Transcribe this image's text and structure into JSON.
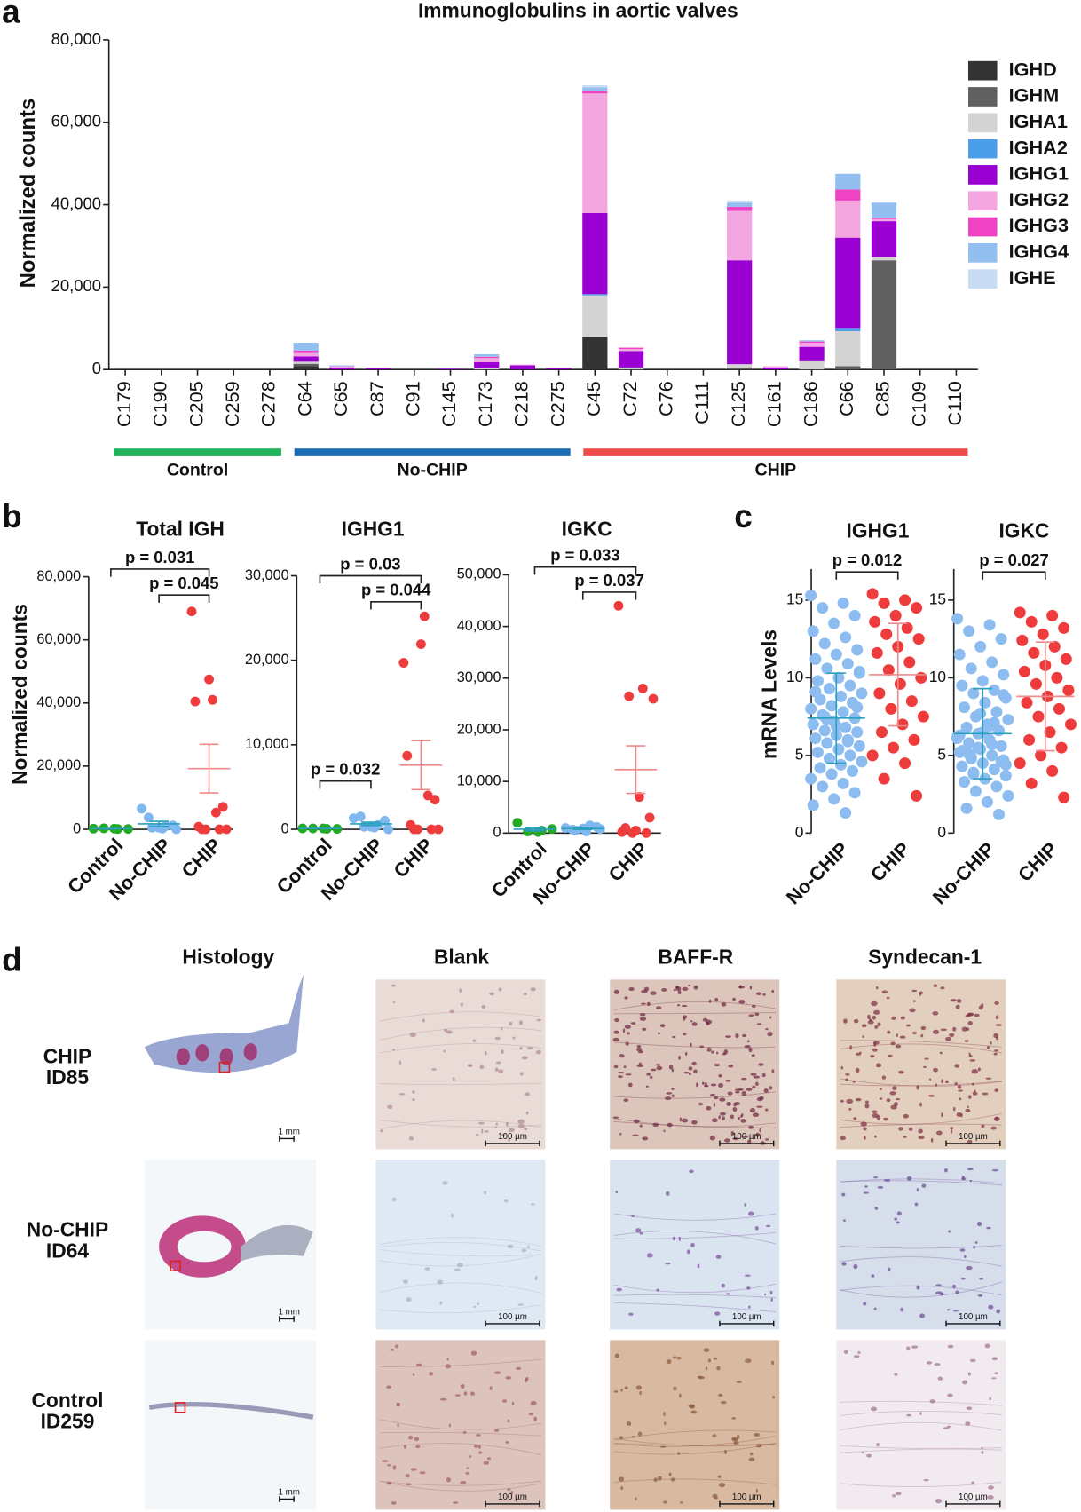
{
  "panel_letters": [
    "a",
    "b",
    "c",
    "d"
  ],
  "chart_data": [
    {
      "type": "bar",
      "stacked": true,
      "title": "Immunoglobulins in aortic valves",
      "ylabel": "Normalized counts",
      "categories": [
        "C179",
        "C190",
        "C205",
        "C259",
        "C278",
        "C64",
        "C65",
        "C87",
        "C91",
        "C145",
        "C173",
        "C218",
        "C275",
        "C45",
        "C72",
        "C76",
        "C111",
        "C125",
        "C161",
        "C186",
        "C66",
        "C85",
        "C109",
        "C110"
      ],
      "series": [
        {
          "name": "IGHD",
          "color": "#333333",
          "values": [
            0,
            0,
            0,
            0,
            0,
            800,
            0,
            0,
            0,
            0,
            0,
            0,
            0,
            7800,
            0,
            0,
            0,
            0,
            0,
            0,
            0,
            0,
            0,
            0
          ]
        },
        {
          "name": "IGHM",
          "color": "#606060",
          "values": [
            0,
            0,
            0,
            0,
            0,
            600,
            0,
            0,
            0,
            0,
            0,
            0,
            0,
            0,
            0,
            0,
            0,
            500,
            0,
            0,
            800,
            26500,
            0,
            0
          ]
        },
        {
          "name": "IGHA1",
          "color": "#d3d3d3",
          "values": [
            0,
            0,
            0,
            0,
            0,
            500,
            0,
            0,
            0,
            0,
            300,
            0,
            0,
            10200,
            500,
            0,
            0,
            800,
            0,
            2000,
            8500,
            800,
            0,
            0
          ]
        },
        {
          "name": "IGHA2",
          "color": "#4a9eea",
          "values": [
            0,
            0,
            0,
            0,
            0,
            0,
            0,
            0,
            0,
            0,
            0,
            0,
            0,
            300,
            0,
            0,
            0,
            0,
            0,
            0,
            800,
            0,
            0,
            0
          ]
        },
        {
          "name": "IGHG1",
          "color": "#9b00d3",
          "values": [
            0,
            0,
            0,
            0,
            0,
            1300,
            500,
            300,
            0,
            200,
            1500,
            1000,
            300,
            19700,
            4000,
            0,
            0,
            25200,
            500,
            3500,
            21900,
            8700,
            0,
            0
          ]
        },
        {
          "name": "IGHG2",
          "color": "#f4a6e0",
          "values": [
            0,
            0,
            0,
            0,
            0,
            800,
            300,
            200,
            0,
            0,
            1000,
            200,
            200,
            29000,
            500,
            0,
            0,
            12000,
            300,
            1000,
            9000,
            500,
            0,
            0
          ]
        },
        {
          "name": "IGHG3",
          "color": "#ee44c4",
          "values": [
            0,
            0,
            0,
            0,
            0,
            600,
            0,
            0,
            0,
            0,
            300,
            0,
            0,
            500,
            300,
            0,
            0,
            1000,
            0,
            300,
            2700,
            300,
            0,
            0
          ]
        },
        {
          "name": "IGHG4",
          "color": "#93bff0",
          "values": [
            0,
            0,
            0,
            0,
            0,
            1900,
            200,
            0,
            0,
            0,
            600,
            0,
            0,
            1000,
            0,
            0,
            0,
            1000,
            0,
            300,
            3800,
            3700,
            0,
            0
          ]
        },
        {
          "name": "IGHE",
          "color": "#c8dcf4",
          "values": [
            0,
            0,
            0,
            0,
            0,
            0,
            0,
            0,
            0,
            0,
            0,
            0,
            0,
            500,
            0,
            0,
            0,
            500,
            0,
            0,
            0,
            0,
            0,
            0
          ]
        }
      ],
      "ylim": [
        0,
        80000
      ],
      "yticks": [
        0,
        {
          "value": 20000,
          "label": "20,000"
        },
        {
          "value": 40000,
          "label": "40,000"
        },
        {
          "value": 60000,
          "label": "60,000"
        },
        {
          "value": 80000,
          "label": "80,000"
        }
      ],
      "legend": "right",
      "groups": [
        {
          "name": "Control",
          "color": "#21b35b",
          "members": [
            "C179",
            "C278"
          ]
        },
        {
          "name": "No-CHIP",
          "color": "#1b6cb5",
          "members": [
            "C64",
            "C275"
          ]
        },
        {
          "name": "CHIP",
          "color": "#ee4c4c",
          "members": [
            "C45",
            "C110"
          ]
        }
      ]
    },
    {
      "type": "dot",
      "title": "Total IGH",
      "ylabel": "Normalized counts",
      "series": [
        {
          "name": "Control",
          "color": "#22aa22",
          "values": [
            200,
            100,
            300,
            100,
            200
          ],
          "mean": 180,
          "error": 40
        },
        {
          "name": "No-CHIP",
          "color": "#7fb8ee",
          "values": [
            6500,
            1000,
            500,
            0,
            200,
            3700,
            1200,
            500
          ],
          "mean": 1700,
          "error": 800
        },
        {
          "name": "CHIP",
          "color": "#ee3b3b",
          "values": [
            69000,
            5300,
            0,
            0,
            41000,
            800,
            7100,
            47500,
            40500,
            0,
            0
          ],
          "mean": 19200,
          "error": 7700
        }
      ],
      "ylim": [
        0,
        80000
      ],
      "yticks": [
        0,
        {
          "value": 20000,
          "label": "20,000"
        },
        {
          "value": 40000,
          "label": "40,000"
        },
        {
          "value": 60000,
          "label": "60,000"
        },
        {
          "value": 80000,
          "label": "80,000"
        }
      ],
      "comparisons": [
        {
          "label": "p = 0.031",
          "groups": [
            "Control",
            "CHIP"
          ]
        },
        {
          "label": "p = 0.045",
          "groups": [
            "No-CHIP",
            "CHIP"
          ]
        }
      ]
    },
    {
      "type": "dot",
      "title": "IGHG1",
      "series": [
        {
          "name": "Control",
          "color": "#22aa22",
          "values": [
            100,
            50,
            100,
            50,
            100
          ],
          "mean": 80,
          "error": 20
        },
        {
          "name": "No-CHIP",
          "color": "#7fb8ee",
          "values": [
            1300,
            500,
            300,
            0,
            200,
            1500,
            1000,
            300
          ],
          "mean": 640,
          "error": 200
        },
        {
          "name": "CHIP",
          "color": "#ee3b3b",
          "values": [
            19700,
            4000,
            0,
            0,
            25200,
            500,
            3500,
            21900,
            8700,
            0,
            0
          ],
          "mean": 7590,
          "error": 2900
        }
      ],
      "ylim": [
        0,
        30000
      ],
      "yticks": [
        0,
        {
          "value": 10000,
          "label": "10,000"
        },
        {
          "value": 20000,
          "label": "20,000"
        },
        {
          "value": 30000,
          "label": "30,000"
        }
      ],
      "comparisons": [
        {
          "label": "p = 0.03",
          "groups": [
            "Control",
            "CHIP"
          ]
        },
        {
          "label": "p = 0.044",
          "groups": [
            "No-CHIP",
            "CHIP"
          ]
        },
        {
          "label": "p = 0.032",
          "groups": [
            "Control",
            "No-CHIP"
          ]
        }
      ]
    },
    {
      "type": "dot",
      "title": "IGKC",
      "series": [
        {
          "name": "Control",
          "color": "#22aa22",
          "values": [
            2000,
            500,
            300,
            800,
            200
          ],
          "mean": 760,
          "error": 330
        },
        {
          "name": "No-CHIP",
          "color": "#7fb8ee",
          "values": [
            1000,
            1500,
            500,
            800,
            300,
            700,
            1200,
            900
          ],
          "mean": 860,
          "error": 140
        },
        {
          "name": "CHIP",
          "color": "#ee3b3b",
          "values": [
            44000,
            28000,
            26500,
            26000,
            7000,
            1000,
            3000,
            500,
            200,
            0,
            0
          ],
          "mean": 12300,
          "error": 4600
        }
      ],
      "ylim": [
        0,
        50000
      ],
      "yticks": [
        0,
        {
          "value": 10000,
          "label": "10,000"
        },
        {
          "value": 20000,
          "label": "20,000"
        },
        {
          "value": 30000,
          "label": "30,000"
        },
        {
          "value": 40000,
          "label": "40,000"
        },
        {
          "value": 50000,
          "label": "50,000"
        }
      ],
      "comparisons": [
        {
          "label": "p = 0.033",
          "groups": [
            "Control",
            "CHIP"
          ]
        },
        {
          "label": "p = 0.037",
          "groups": [
            "No-CHIP",
            "CHIP"
          ]
        }
      ]
    },
    {
      "type": "dot",
      "title": "IGHG1",
      "ylabel": "mRNA Levels",
      "series": [
        {
          "name": "No-CHIP",
          "color": "#8dbdf0",
          "values": [
            15.3,
            14.8,
            14.5,
            14.0,
            13.5,
            13.0,
            12.6,
            12.2,
            11.8,
            11.5,
            11.2,
            10.9,
            10.6,
            10.3,
            10.0,
            9.8,
            9.5,
            9.3,
            9.0,
            8.8,
            8.6,
            8.4,
            8.2,
            8.0,
            7.8,
            7.6,
            7.4,
            7.2,
            7.0,
            6.8,
            6.6,
            6.5,
            6.3,
            6.1,
            6.0,
            5.8,
            5.6,
            5.4,
            5.2,
            5.0,
            4.8,
            4.6,
            4.4,
            4.2,
            4.0,
            3.8,
            3.5,
            3.2,
            3.0,
            2.6,
            2.2,
            1.8,
            1.3,
            7.5,
            8.1,
            6.9,
            9.1,
            5.9,
            7.3,
            10.4
          ],
          "mean": 7.4,
          "error": 2.9
        },
        {
          "name": "CHIP",
          "color": "#ee3b3b",
          "values": [
            15.4,
            15.0,
            14.8,
            14.5,
            14.0,
            13.6,
            13.2,
            12.8,
            12.5,
            12.0,
            11.6,
            11.0,
            10.5,
            10.0,
            9.6,
            9.0,
            8.5,
            8.0,
            7.5,
            7.0,
            6.5,
            6.0,
            5.5,
            5.0,
            4.5,
            3.5,
            2.4
          ],
          "mean": 10.2,
          "error": 3.3
        }
      ],
      "ylim": [
        0,
        17
      ],
      "yticks": [
        0,
        5,
        10,
        15
      ],
      "comparisons": [
        {
          "label": "p = 0.012",
          "groups": [
            "No-CHIP",
            "CHIP"
          ]
        }
      ]
    },
    {
      "type": "dot",
      "title": "IGKC",
      "series": [
        {
          "name": "No-CHIP",
          "color": "#8dbdf0",
          "values": [
            13.8,
            13.4,
            13.0,
            12.5,
            12.0,
            11.5,
            11.0,
            10.6,
            10.2,
            9.8,
            9.5,
            9.2,
            9.0,
            8.7,
            8.4,
            8.1,
            7.8,
            7.5,
            7.3,
            7.0,
            6.8,
            6.6,
            6.4,
            6.2,
            6.0,
            5.8,
            5.6,
            5.4,
            5.2,
            5.0,
            4.9,
            4.7,
            4.5,
            4.3,
            4.1,
            3.9,
            3.7,
            3.5,
            3.3,
            3.0,
            2.7,
            2.4,
            2.0,
            1.6,
            1.2,
            5.5,
            6.1,
            6.9,
            5.1,
            4.6,
            7.7,
            6.3,
            5.7,
            4.8,
            8.9,
            6.5,
            5.3,
            7.1,
            3.8,
            4.4
          ],
          "mean": 6.4,
          "error": 2.9
        },
        {
          "name": "CHIP",
          "color": "#ee3b3b",
          "values": [
            14.2,
            14.0,
            13.6,
            13.2,
            12.8,
            12.4,
            12.0,
            11.6,
            11.2,
            10.8,
            10.4,
            10.0,
            9.6,
            9.2,
            8.8,
            8.4,
            8.0,
            7.5,
            7.0,
            6.5,
            6.0,
            5.5,
            5.0,
            4.5,
            4.0,
            3.2,
            2.3
          ],
          "mean": 8.8,
          "error": 3.5
        }
      ],
      "ylim": [
        0,
        17
      ],
      "yticks": [
        0,
        5,
        10,
        15
      ],
      "comparisons": [
        {
          "label": "p = 0.027",
          "groups": [
            "No-CHIP",
            "CHIP"
          ]
        }
      ]
    }
  ],
  "histology": {
    "columns": [
      "Histology",
      "Blank",
      "BAFF-R",
      "Syndecan-1"
    ],
    "rows": [
      {
        "lines": [
          "CHIP",
          "ID85"
        ]
      },
      {
        "lines": [
          "No-CHIP",
          "ID64"
        ]
      },
      {
        "lines": [
          "Control",
          "ID259"
        ]
      }
    ],
    "scale_bars": {
      "histology": "1 mm",
      "micrograph": "100 µm"
    }
  }
}
